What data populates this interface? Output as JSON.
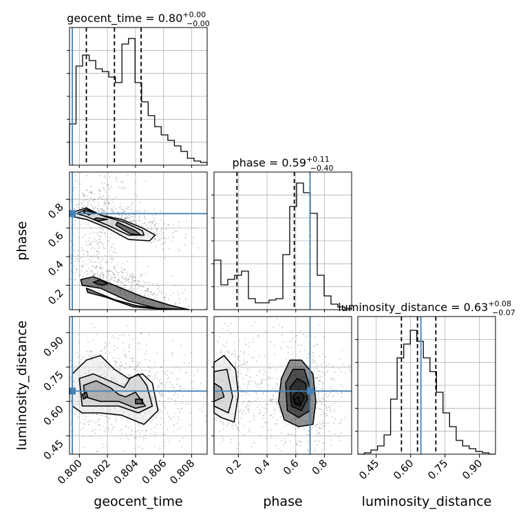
{
  "chart_data": {
    "type": "corner",
    "params": [
      {
        "name": "geocent_time",
        "label": "geocent_time",
        "title": "geocent_time = 0.80",
        "err_plus": "+0.00",
        "err_minus": "−0.00",
        "range": [
          0.7993,
          0.8091
        ],
        "truth": 0.7995,
        "quantiles": [
          0.8005,
          0.8025,
          0.8044
        ],
        "ticks": [
          0.8,
          0.802,
          0.804,
          0.806,
          0.808
        ],
        "tick_labels": [
          "0.800",
          "0.802",
          "0.804",
          "0.806",
          "0.808"
        ],
        "hist": [
          0.3,
          0.72,
          0.8,
          0.76,
          0.7,
          0.68,
          0.64,
          0.6,
          0.88,
          0.92,
          0.6,
          0.46,
          0.36,
          0.28,
          0.22,
          0.18,
          0.14,
          0.1,
          0.05,
          0.03,
          0.02
        ]
      },
      {
        "name": "phase",
        "label": "phase",
        "title": "phase = 0.59",
        "err_plus": "+0.11",
        "err_minus": "−0.40",
        "range": [
          0.03,
          0.99
        ],
        "truth": 0.7,
        "quantiles": [
          0.19,
          0.59,
          0.7
        ],
        "ticks": [
          0.2,
          0.4,
          0.6,
          0.8
        ],
        "tick_labels": [
          "0.2",
          "0.4",
          "0.6",
          "0.8"
        ],
        "hist": [
          0.36,
          0.18,
          0.22,
          0.25,
          0.28,
          0.08,
          0.05,
          0.05,
          0.07,
          0.08,
          0.4,
          0.75,
          0.92,
          0.85,
          0.7,
          0.25,
          0.1,
          0.04,
          0.02,
          0.01
        ]
      },
      {
        "name": "luminosity_distance",
        "label": "luminosity_distance",
        "title": "luminosity_distance = 0.63",
        "err_plus": "+0.08",
        "err_minus": "−0.07",
        "range": [
          0.37,
          0.97
        ],
        "truth": 0.645,
        "quantiles": [
          0.56,
          0.63,
          0.71
        ],
        "ticks": [
          0.45,
          0.6,
          0.75,
          0.9
        ],
        "tick_labels": [
          "0.45",
          "0.60",
          "0.75",
          "0.90"
        ],
        "hist": [
          0.0,
          0.01,
          0.03,
          0.06,
          0.14,
          0.4,
          0.7,
          0.8,
          0.9,
          0.82,
          0.7,
          0.6,
          0.45,
          0.3,
          0.2,
          0.1,
          0.06,
          0.04,
          0.02,
          0.01,
          0.0
        ]
      }
    ],
    "truth_color": "#4682b4",
    "grid": true,
    "contours": {
      "geocent_time|phase": [
        [
          [
            0.7996,
            0.71
          ],
          [
            0.8005,
            0.74
          ],
          [
            0.8015,
            0.69
          ],
          [
            0.803,
            0.66
          ],
          [
            0.8045,
            0.6
          ],
          [
            0.8054,
            0.55
          ],
          [
            0.805,
            0.51
          ],
          [
            0.8035,
            0.52
          ],
          [
            0.802,
            0.6
          ],
          [
            0.8005,
            0.66
          ],
          [
            0.7995,
            0.68
          ]
        ],
        [
          [
            0.7998,
            0.7
          ],
          [
            0.8005,
            0.73
          ],
          [
            0.8018,
            0.68
          ],
          [
            0.8032,
            0.64
          ],
          [
            0.8045,
            0.58
          ],
          [
            0.8046,
            0.55
          ],
          [
            0.8035,
            0.55
          ],
          [
            0.802,
            0.62
          ],
          [
            0.8005,
            0.68
          ]
        ],
        [
          [
            0.8004,
            0.72
          ],
          [
            0.801,
            0.71
          ],
          [
            0.8007,
            0.69
          ],
          [
            0.8003,
            0.71
          ]
        ],
        [
          [
            0.8012,
            0.67
          ],
          [
            0.802,
            0.66
          ],
          [
            0.8014,
            0.65
          ],
          [
            0.801,
            0.66
          ]
        ],
        [
          [
            0.8027,
            0.64
          ],
          [
            0.804,
            0.58
          ],
          [
            0.8044,
            0.55
          ],
          [
            0.8036,
            0.56
          ],
          [
            0.8026,
            0.62
          ]
        ],
        [
          [
            0.8001,
            0.24
          ],
          [
            0.801,
            0.26
          ],
          [
            0.8025,
            0.2
          ],
          [
            0.8045,
            0.12
          ],
          [
            0.8065,
            0.06
          ],
          [
            0.8078,
            0.03
          ],
          [
            0.8055,
            0.04
          ],
          [
            0.8035,
            0.09
          ],
          [
            0.8015,
            0.18
          ],
          [
            0.8002,
            0.2
          ]
        ],
        [
          [
            0.8005,
            0.18
          ],
          [
            0.8015,
            0.14
          ],
          [
            0.8025,
            0.1
          ],
          [
            0.804,
            0.06
          ],
          [
            0.8062,
            0.03
          ],
          [
            0.8038,
            0.05
          ],
          [
            0.8018,
            0.12
          ],
          [
            0.8006,
            0.15
          ]
        ],
        [
          [
            0.801,
            0.22
          ],
          [
            0.8015,
            0.24
          ],
          [
            0.802,
            0.21
          ],
          [
            0.8016,
            0.2
          ]
        ]
      ],
      "geocent_time|luminosity_distance": [
        [
          [
            0.7995,
            0.72
          ],
          [
            0.8005,
            0.78
          ],
          [
            0.8015,
            0.8
          ],
          [
            0.8025,
            0.74
          ],
          [
            0.8035,
            0.7
          ],
          [
            0.8045,
            0.72
          ],
          [
            0.8052,
            0.68
          ],
          [
            0.8056,
            0.56
          ],
          [
            0.8046,
            0.5
          ],
          [
            0.803,
            0.54
          ],
          [
            0.8015,
            0.55
          ],
          [
            0.8002,
            0.55
          ],
          [
            0.7995,
            0.58
          ]
        ],
        [
          [
            0.8,
            0.7
          ],
          [
            0.801,
            0.72
          ],
          [
            0.8025,
            0.68
          ],
          [
            0.8032,
            0.66
          ],
          [
            0.8036,
            0.7
          ],
          [
            0.8042,
            0.72
          ],
          [
            0.8048,
            0.67
          ],
          [
            0.8052,
            0.58
          ],
          [
            0.8042,
            0.55
          ],
          [
            0.8028,
            0.58
          ],
          [
            0.8015,
            0.58
          ],
          [
            0.8002,
            0.58
          ]
        ],
        [
          [
            0.8003,
            0.67
          ],
          [
            0.8012,
            0.69
          ],
          [
            0.8022,
            0.66
          ],
          [
            0.8028,
            0.63
          ],
          [
            0.8033,
            0.62
          ],
          [
            0.804,
            0.64
          ],
          [
            0.8047,
            0.58
          ],
          [
            0.804,
            0.57
          ],
          [
            0.8028,
            0.6
          ],
          [
            0.8015,
            0.6
          ],
          [
            0.8004,
            0.62
          ]
        ],
        [
          [
            0.8002,
            0.63
          ],
          [
            0.8005,
            0.64
          ],
          [
            0.8006,
            0.62
          ],
          [
            0.8003,
            0.61
          ]
        ],
        [
          [
            0.804,
            0.61
          ],
          [
            0.8045,
            0.61
          ],
          [
            0.8045,
            0.59
          ],
          [
            0.804,
            0.59
          ]
        ]
      ],
      "phase|luminosity_distance": [
        [
          [
            0.03,
            0.77
          ],
          [
            0.1,
            0.8
          ],
          [
            0.18,
            0.74
          ],
          [
            0.2,
            0.63
          ],
          [
            0.17,
            0.51
          ],
          [
            0.08,
            0.53
          ],
          [
            0.03,
            0.55
          ]
        ],
        [
          [
            0.03,
            0.73
          ],
          [
            0.12,
            0.74
          ],
          [
            0.16,
            0.62
          ],
          [
            0.13,
            0.55
          ],
          [
            0.03,
            0.58
          ]
        ],
        [
          [
            0.03,
            0.68
          ],
          [
            0.08,
            0.66
          ],
          [
            0.1,
            0.62
          ],
          [
            0.03,
            0.6
          ]
        ],
        [
          [
            0.5,
            0.7
          ],
          [
            0.56,
            0.78
          ],
          [
            0.64,
            0.78
          ],
          [
            0.72,
            0.72
          ],
          [
            0.74,
            0.6
          ],
          [
            0.72,
            0.5
          ],
          [
            0.62,
            0.49
          ],
          [
            0.52,
            0.52
          ],
          [
            0.48,
            0.6
          ]
        ],
        [
          [
            0.53,
            0.68
          ],
          [
            0.58,
            0.74
          ],
          [
            0.66,
            0.74
          ],
          [
            0.7,
            0.66
          ],
          [
            0.7,
            0.56
          ],
          [
            0.62,
            0.53
          ],
          [
            0.54,
            0.56
          ]
        ],
        [
          [
            0.56,
            0.66
          ],
          [
            0.61,
            0.7
          ],
          [
            0.67,
            0.68
          ],
          [
            0.68,
            0.61
          ],
          [
            0.64,
            0.56
          ],
          [
            0.57,
            0.58
          ]
        ],
        [
          [
            0.58,
            0.62
          ],
          [
            0.62,
            0.65
          ],
          [
            0.66,
            0.62
          ],
          [
            0.63,
            0.58
          ],
          [
            0.59,
            0.59
          ]
        ],
        [
          [
            0.59,
            0.61
          ],
          [
            0.62,
            0.62
          ],
          [
            0.63,
            0.59
          ],
          [
            0.6,
            0.59
          ]
        ]
      ]
    }
  }
}
